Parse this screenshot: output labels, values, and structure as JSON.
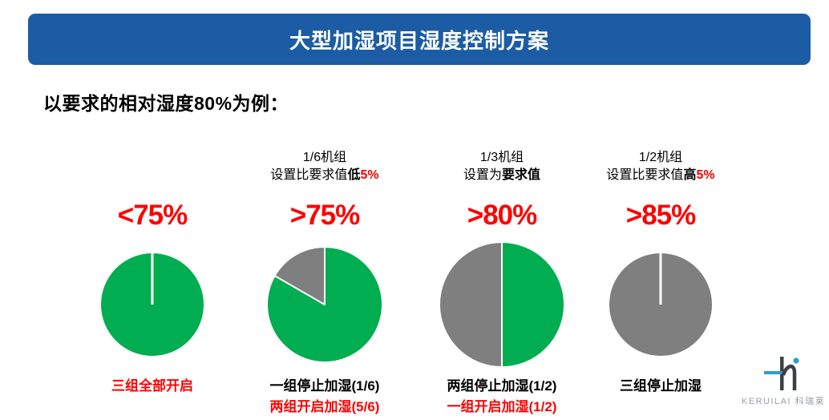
{
  "palette": {
    "title_blue": "#1B5CA5",
    "green": "#00AD50",
    "gray": "#7F7F7F",
    "red": "#FF0000",
    "logo_blue": "#2E9BD6",
    "logo_dark": "#3B4046",
    "logo_text_gray": "#98A0A8"
  },
  "title": "大型加湿项目湿度控制方案",
  "subtitle": "以要求的相对湿度80%为例：",
  "columns": [
    {
      "header_line1": "",
      "h2_normal": "",
      "h2_bold": "",
      "h2_red": "",
      "threshold": "<75%",
      "label1": "三组全部开启",
      "label2": ""
    },
    {
      "header_line1": "1/6机组",
      "h2_normal": "设置比要求值",
      "h2_bold": "低",
      "h2_red": "5%",
      "threshold": ">75%",
      "label1": "一组停止加湿(1/6)",
      "label2": "两组开启加湿(5/6)"
    },
    {
      "header_line1": "1/3机组",
      "h2_normal": "设置为",
      "h2_bold": "要求值",
      "h2_red": "",
      "threshold": ">80%",
      "label1": "两组停止加湿(1/2)",
      "label2": "一组开启加湿(1/2)"
    },
    {
      "header_line1": "1/2机组",
      "h2_normal": "设置比要求值",
      "h2_bold": "高",
      "h2_red": "5%",
      "threshold": ">85%",
      "label1": "三组停止加湿",
      "label2": ""
    }
  ],
  "chart_data": [
    {
      "type": "pie",
      "title": "<75%",
      "slices": [
        {
          "name": "开启加湿",
          "value": 1.0,
          "color": "green"
        }
      ],
      "caption": "三组全部开启"
    },
    {
      "type": "pie",
      "title": ">75%",
      "slices": [
        {
          "name": "开启加湿",
          "value": 0.8333,
          "color": "green"
        },
        {
          "name": "停止加湿",
          "value": 0.1667,
          "color": "gray"
        }
      ],
      "caption": "一组停止加湿(1/6)，两组开启加湿(5/6)"
    },
    {
      "type": "pie",
      "title": ">80%",
      "slices": [
        {
          "name": "开启加湿",
          "value": 0.5,
          "color": "green"
        },
        {
          "name": "停止加湿",
          "value": 0.5,
          "color": "gray"
        }
      ],
      "caption": "两组停止加湿(1/2)，一组开启加湿(1/2)"
    },
    {
      "type": "pie",
      "title": ">85%",
      "slices": [
        {
          "name": "停止加湿",
          "value": 1.0,
          "color": "gray"
        }
      ],
      "caption": "三组停止加湿"
    }
  ],
  "logo": {
    "mark": "Ki",
    "text": "KERUILAI 科瑞莱"
  }
}
